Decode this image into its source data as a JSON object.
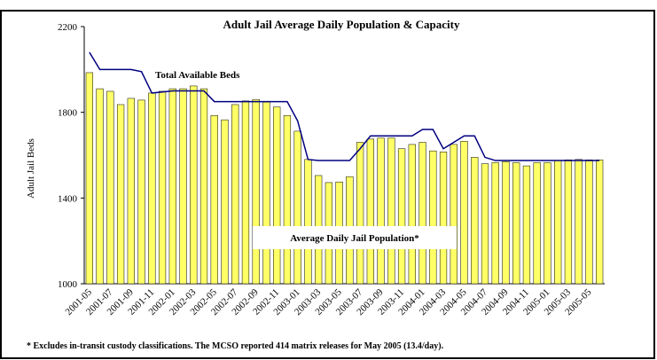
{
  "chart_data": {
    "type": "bar",
    "title": "Adult Jail Average Daily Population & Capacity",
    "y_label": "Adult Jail Beds",
    "footnote": "* Excludes in-transit custody classifications. The MCSO reported 414 matrix releases for May 2005 (13.4/day).",
    "categories": [
      "2001-05",
      null,
      "2001-07",
      null,
      "2001-09",
      null,
      "2001-11",
      null,
      "2002-01",
      null,
      "2002-03",
      null,
      "2002-05",
      null,
      "2002-07",
      null,
      "2002-09",
      null,
      "2002-11",
      null,
      "2003-01",
      null,
      "2003-03",
      null,
      "2003-05",
      null,
      "2003-07",
      null,
      "2003-09",
      null,
      "2003-11",
      null,
      "2004-01",
      null,
      "2004-03",
      null,
      "2004-05",
      null,
      "2004-07",
      null,
      "2004-09",
      null,
      "2004-11",
      null,
      "2005-01",
      null,
      "2005-03",
      null,
      "2005-05",
      null
    ],
    "series": [
      {
        "name": "Average Daily Jail Population*",
        "type": "bar",
        "color": "#ffff66",
        "values": [
          1985,
          1910,
          1898,
          1836,
          1865,
          1857,
          1890,
          1898,
          1910,
          1910,
          1923,
          1910,
          1785,
          1765,
          1836,
          1853,
          1860,
          1848,
          1825,
          1785,
          1712,
          1580,
          1505,
          1472,
          1475,
          1500,
          1660,
          1675,
          1680,
          1680,
          1630,
          1650,
          1660,
          1620,
          1615,
          1650,
          1665,
          1590,
          1560,
          1565,
          1570,
          1565,
          1550,
          1565,
          1565,
          1575,
          1578,
          1580,
          1578,
          1578
        ]
      },
      {
        "name": "Total Available Beds",
        "type": "line",
        "color": "#000080",
        "values": [
          2080,
          2000,
          2000,
          2000,
          2000,
          1990,
          1890,
          1895,
          1900,
          1900,
          1900,
          1900,
          1850,
          1850,
          1850,
          1850,
          1850,
          1850,
          1850,
          1850,
          1760,
          1580,
          1575,
          1575,
          1575,
          1575,
          1630,
          1690,
          1690,
          1690,
          1690,
          1690,
          1720,
          1720,
          1630,
          1660,
          1690,
          1690,
          1590,
          1575,
          1575,
          1575,
          1575,
          1575,
          1575,
          1575,
          1575,
          1575,
          1575,
          1575
        ]
      }
    ],
    "ylim": [
      1000,
      2200
    ],
    "yticks": [
      1000,
      1400,
      1800,
      2200
    ]
  }
}
